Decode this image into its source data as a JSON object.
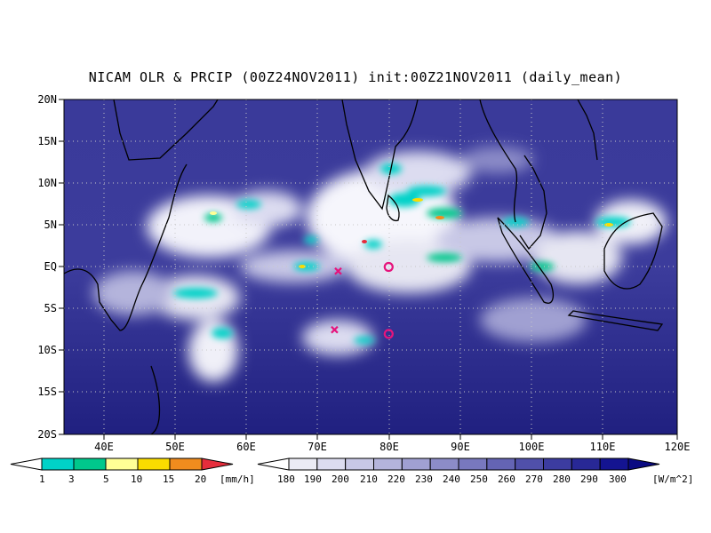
{
  "title": "NICAM OLR & PRCIP (00Z24NOV2011) init:00Z21NOV2011 (daily_mean)",
  "lat_labels": [
    "20N",
    "15N",
    "10N",
    "5N",
    "EQ",
    "5S",
    "10S",
    "15S",
    "20S"
  ],
  "lon_labels": [
    "40E",
    "50E",
    "60E",
    "70E",
    "80E",
    "90E",
    "100E",
    "110E",
    "120E"
  ],
  "precip_colorbar": {
    "unit": "[mm/h]",
    "levels": [
      "1",
      "3",
      "5",
      "10",
      "15",
      "20"
    ],
    "colors": [
      "#ffffff",
      "#00d2c8",
      "#00c88c",
      "#ffff96",
      "#fadc00",
      "#f08c1e",
      "#e62d3c"
    ]
  },
  "olr_colorbar": {
    "unit": "[W/m^2]",
    "levels": [
      "180",
      "190",
      "200",
      "210",
      "220",
      "230",
      "240",
      "250",
      "260",
      "270",
      "280",
      "290",
      "300"
    ],
    "colors": [
      "#ffffff",
      "#ebebf5",
      "#dcdcf0",
      "#c8c8e6",
      "#b4b4dc",
      "#a0a0d2",
      "#8c8cc8",
      "#7878be",
      "#6464b4",
      "#5050aa",
      "#3c3ca0",
      "#282896",
      "#141491",
      "#0a0a82"
    ]
  },
  "markers": [
    {
      "type": "circle",
      "lon": 80,
      "lat": 0,
      "color": "#e6147c"
    },
    {
      "type": "circle",
      "lon": 80,
      "lat": -8,
      "color": "#e6147c"
    },
    {
      "type": "x",
      "lon": 73,
      "lat": -0.5,
      "color": "#e6147c"
    },
    {
      "type": "x",
      "lon": 72.5,
      "lat": -7.5,
      "color": "#e6147c"
    }
  ],
  "map_colors": {
    "ocean": "#2a2a8c",
    "cloud": "#ffffff",
    "coast": "#000000",
    "grid": "#c8c8c8"
  }
}
